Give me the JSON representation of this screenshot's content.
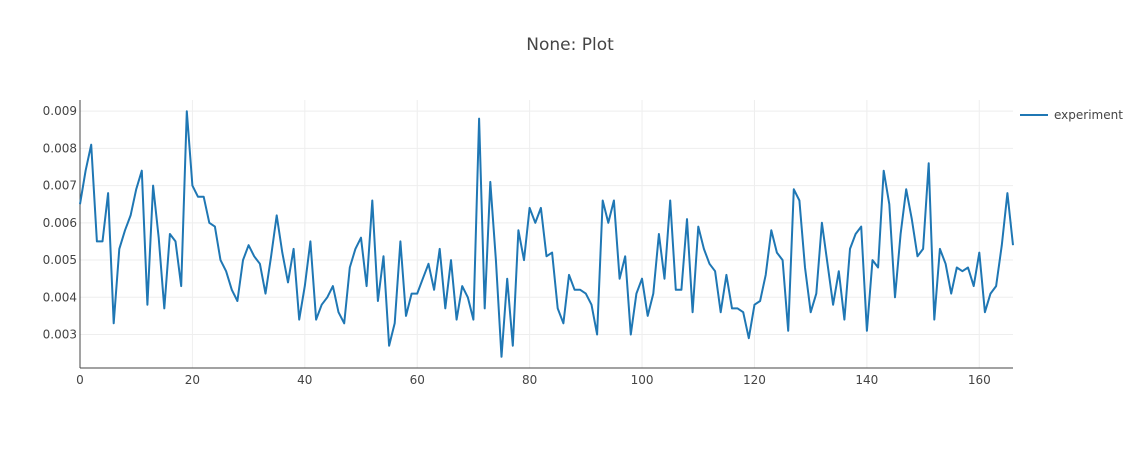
{
  "chart_data": {
    "type": "line",
    "title": "None: Plot",
    "xlabel": "",
    "ylabel": "",
    "xlim": [
      0,
      166
    ],
    "ylim": [
      0.0021,
      0.0093
    ],
    "x_ticks": [
      0,
      20,
      40,
      60,
      80,
      100,
      120,
      140,
      160
    ],
    "y_ticks": [
      0.003,
      0.004,
      0.005,
      0.006,
      0.007,
      0.008,
      0.009
    ],
    "y_tick_labels": [
      "0.003",
      "0.004",
      "0.005",
      "0.006",
      "0.007",
      "0.008",
      "0.009"
    ],
    "grid": true,
    "legend": "top-right",
    "series": [
      {
        "name": "experiment",
        "color": "#1f77b4",
        "values": [
          0.0065,
          0.0074,
          0.0081,
          0.0055,
          0.0055,
          0.0068,
          0.0033,
          0.0053,
          0.0058,
          0.0062,
          0.0069,
          0.0074,
          0.0038,
          0.007,
          0.0056,
          0.0037,
          0.0057,
          0.0055,
          0.0043,
          0.009,
          0.007,
          0.0067,
          0.0067,
          0.006,
          0.0059,
          0.005,
          0.0047,
          0.0042,
          0.0039,
          0.005,
          0.0054,
          0.0051,
          0.0049,
          0.0041,
          0.0051,
          0.0062,
          0.0052,
          0.0044,
          0.0053,
          0.0034,
          0.0043,
          0.0055,
          0.0034,
          0.0038,
          0.004,
          0.0043,
          0.0036,
          0.0033,
          0.0048,
          0.0053,
          0.0056,
          0.0043,
          0.0066,
          0.0039,
          0.0051,
          0.0027,
          0.0033,
          0.0055,
          0.0035,
          0.0041,
          0.0041,
          0.0045,
          0.0049,
          0.0042,
          0.0053,
          0.0037,
          0.005,
          0.0034,
          0.0043,
          0.004,
          0.0034,
          0.0088,
          0.0037,
          0.0071,
          0.005,
          0.0024,
          0.0045,
          0.0027,
          0.0058,
          0.005,
          0.0064,
          0.006,
          0.0064,
          0.0051,
          0.0052,
          0.0037,
          0.0033,
          0.0046,
          0.0042,
          0.0042,
          0.0041,
          0.0038,
          0.003,
          0.0066,
          0.006,
          0.0066,
          0.0045,
          0.0051,
          0.003,
          0.0041,
          0.0045,
          0.0035,
          0.0041,
          0.0057,
          0.0045,
          0.0066,
          0.0042,
          0.0042,
          0.0061,
          0.0036,
          0.0059,
          0.0053,
          0.0049,
          0.0047,
          0.0036,
          0.0046,
          0.0037,
          0.0037,
          0.0036,
          0.0029,
          0.0038,
          0.0039,
          0.0046,
          0.0058,
          0.0052,
          0.005,
          0.0031,
          0.0069,
          0.0066,
          0.0048,
          0.0036,
          0.0041,
          0.006,
          0.0049,
          0.0038,
          0.0047,
          0.0034,
          0.0053,
          0.0057,
          0.0059,
          0.0031,
          0.005,
          0.0048,
          0.0074,
          0.0065,
          0.004,
          0.0057,
          0.0069,
          0.0061,
          0.0051,
          0.0053,
          0.0076,
          0.0034,
          0.0053,
          0.0049,
          0.0041,
          0.0048,
          0.0047,
          0.0048,
          0.0043,
          0.0052,
          0.0036,
          0.0041,
          0.0043,
          0.0054,
          0.0068,
          0.0054
        ]
      }
    ]
  }
}
